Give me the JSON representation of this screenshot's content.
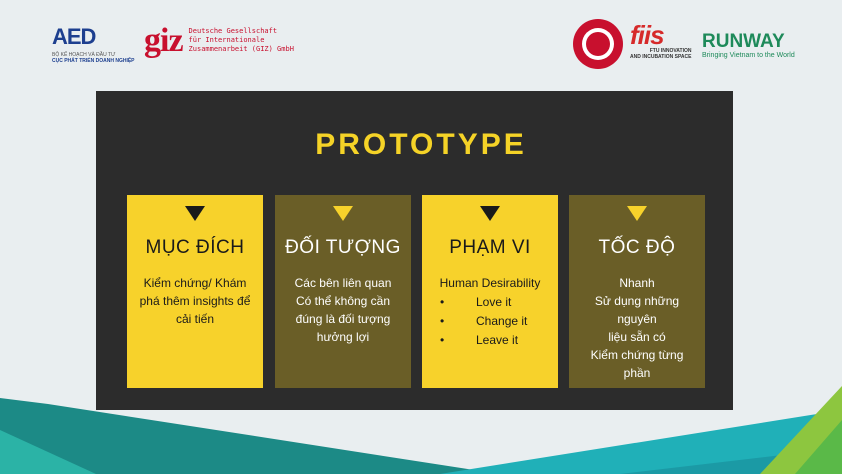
{
  "logos": {
    "aed": {
      "mark": "AED",
      "line1": "BỘ KẾ HOẠCH VÀ ĐẦU TƯ",
      "line2": "CỤC PHÁT TRIỂN DOANH NGHIỆP"
    },
    "giz": {
      "mark": "giz",
      "line1": "Deutsche Gesellschaft",
      "line2": "für Internationale",
      "line3": "Zusammenarbeit (GIZ) GmbH"
    },
    "ftu": {
      "icon": "ftu-seal-icon"
    },
    "fiis": {
      "mark": "fiis",
      "line1": "FTU INNOVATION",
      "line2": "AND INCUBATION SPACE"
    },
    "runway": {
      "mark": "RUNWAY",
      "tagline": "Bringing Vietnam to the World"
    }
  },
  "slide": {
    "title": "PROTOTYPE",
    "cards": [
      {
        "heading": "MỤC ĐÍCH",
        "lines": [
          "Kiểm chứng/ Khám",
          "phá thêm insights để",
          "cải tiến"
        ]
      },
      {
        "heading": "ĐỐI TƯỢNG",
        "lines": [
          "Các bên liên quan",
          "Có thể không cần",
          "đúng là đối tượng",
          "hưởng lợi"
        ]
      },
      {
        "heading": "PHẠM VI",
        "first": "Human Desirability",
        "bullets": [
          "Love it",
          "Change it",
          "Leave it"
        ],
        "bullet_symbol": "•"
      },
      {
        "heading": "TỐC ĐỘ",
        "lines": [
          "Nhanh",
          "Sử dụng những nguyên",
          "liệu sẵn có",
          "Kiểm chứng từng phần"
        ]
      }
    ]
  },
  "colors": {
    "panel": "#2c2c2c",
    "accent_yellow": "#f7d22b",
    "olive": "#6a5e27",
    "background": "#e9eef0"
  }
}
